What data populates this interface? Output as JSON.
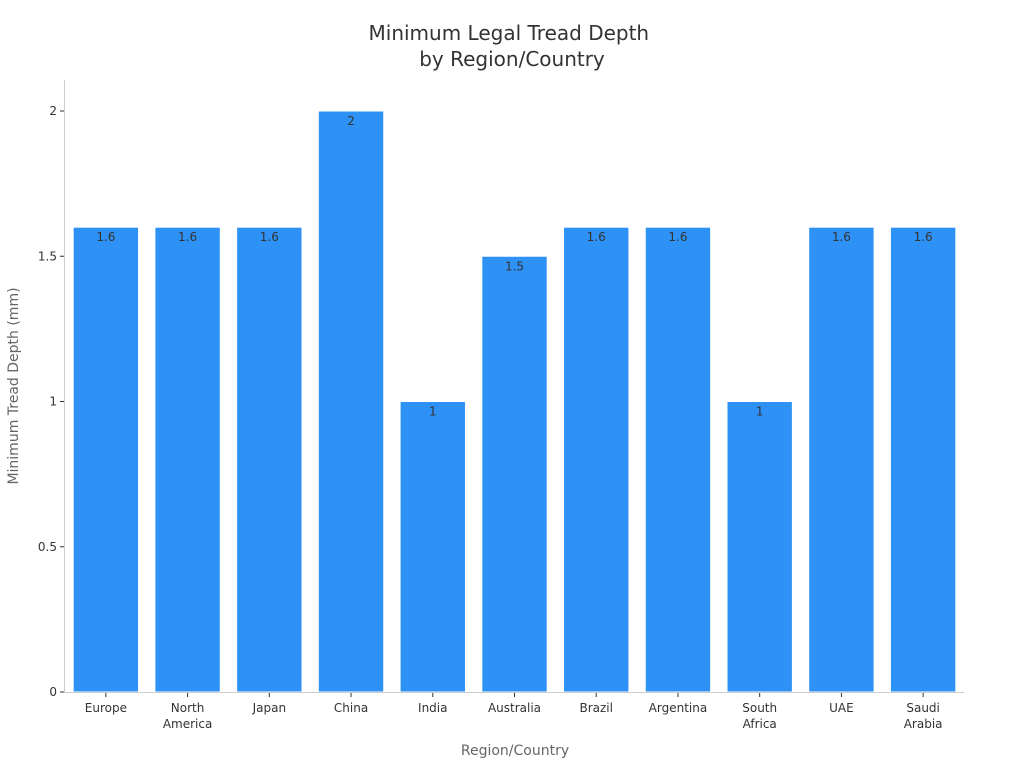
{
  "chart_data": {
    "type": "bar",
    "title": [
      "Minimum Legal Tread Depth",
      "by Region/Country"
    ],
    "xlabel": "Region/Country",
    "ylabel": "Minimum Tread Depth (mm)",
    "categories": [
      [
        "Europe"
      ],
      [
        "North",
        "America"
      ],
      [
        "Japan"
      ],
      [
        "China"
      ],
      [
        "India"
      ],
      [
        "Australia"
      ],
      [
        "Brazil"
      ],
      [
        "Argentina"
      ],
      [
        "South",
        "Africa"
      ],
      [
        "UAE"
      ],
      [
        "Saudi",
        "Arabia"
      ]
    ],
    "values": [
      1.6,
      1.6,
      1.6,
      2,
      1,
      1.5,
      1.6,
      1.6,
      1,
      1.6,
      1.6
    ],
    "ylim": [
      0,
      2.1
    ],
    "yticks": [
      0,
      0.5,
      1,
      1.5,
      2
    ],
    "grid": false,
    "bar_color": "#2e91f5"
  }
}
